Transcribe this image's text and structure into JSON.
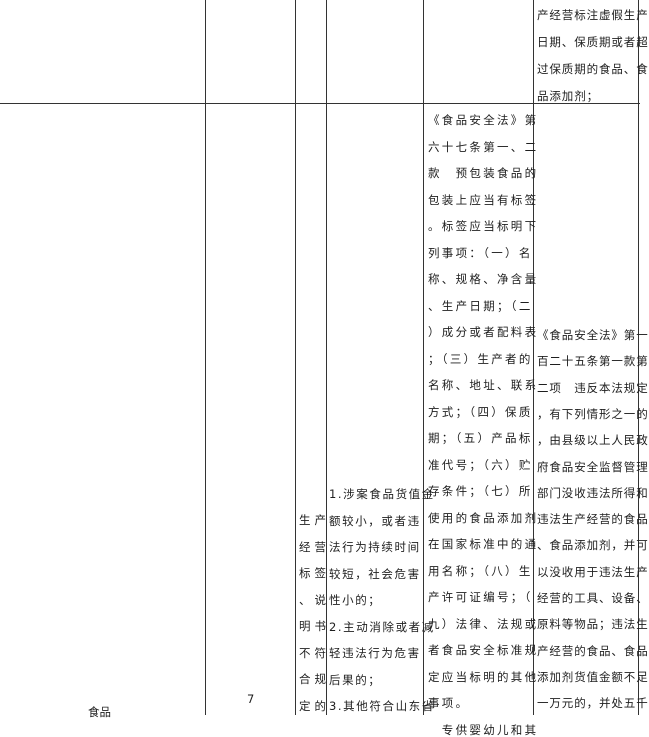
{
  "table": {
    "row1": {
      "penalty_basis_lines": [
        "产经营标注虚假生产",
        "日期、保质期或者超",
        "过保质期的食品、食",
        "品添加剂；"
      ]
    },
    "row2": {
      "category": "食品",
      "number": "7",
      "violation_lines": [
        "生产",
        "经营",
        "标签",
        "、说",
        "明书",
        "不符",
        "合规",
        "定的"
      ],
      "conditions_lines": [
        "1.涉案食品货值金",
        "额较小，或者违",
        "法行为持续时间",
        "较短，社会危害",
        "性小的；",
        "2.主动消除或者减",
        "轻违法行为危害",
        "后果的；",
        "3.其他符合山东省"
      ],
      "legal_basis_lines": [
        "《食品安全法》第",
        "六十七条第一、二",
        "款　预包装食品的",
        "包装上应当有标签",
        "。标签应当标明下",
        "列事项：（一）名",
        "称、规格、净含量",
        "、生产日期；（二",
        "）成分或者配料表",
        "；（三）生产者的",
        "名称、地址、联系",
        "方式；（四）保质",
        "期；（五）产品标",
        "准代号；（六）贮",
        "存条件；（七）所",
        "使用的食品添加剂",
        "在国家标准中的通",
        "用名称；（八）生",
        "产许可证编号；（",
        "九）法律、法规或",
        "者食品安全标准规",
        "定应当标明的其他",
        "事项。",
        "　专供婴幼儿和其"
      ],
      "penalty_basis_lines": [
        "《食品安全法》第一",
        "百二十五条第一款第",
        "二项　违反本法规定",
        "，有下列情形之一的",
        "，由县级以上人民政",
        "府食品安全监督管理",
        "部门没收违法所得和",
        "违法生产经营的食品",
        "、食品添加剂，并可",
        "以没收用于违法生产",
        "经营的工具、设备、",
        "原料等物品；违法生",
        "产经营的食品、食品",
        "添加剂货值金额不足",
        "一万元的，并处五千"
      ]
    }
  }
}
